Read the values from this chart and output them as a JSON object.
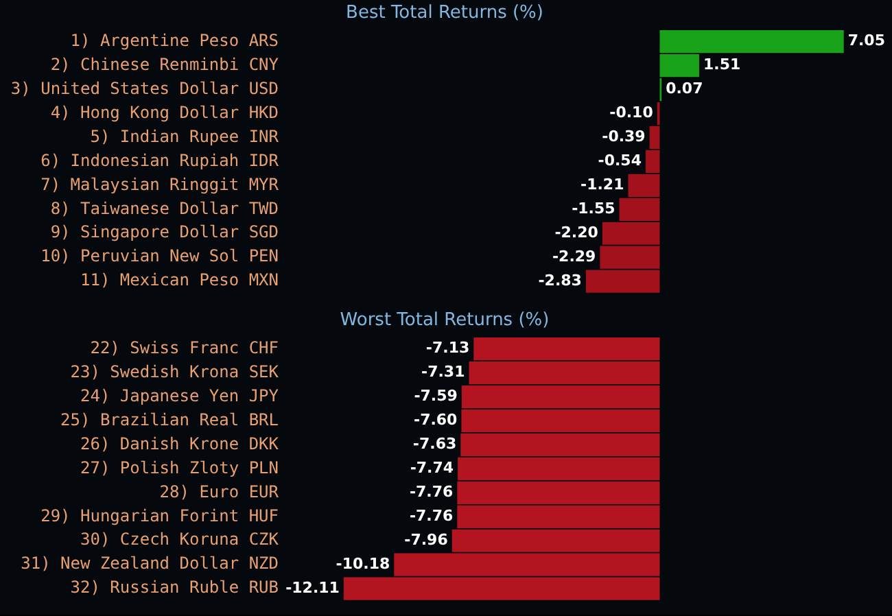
{
  "chart_data": [
    {
      "type": "bar",
      "orientation": "horizontal",
      "title": "Best Total Returns (%)",
      "categories": [
        "1) Argentine Peso ARS",
        "2) Chinese Renminbi CNY",
        "3) United States Dollar USD",
        "4) Hong Kong Dollar HKD",
        "5) Indian Rupee INR",
        "6) Indonesian Rupiah IDR",
        "7) Malaysian Ringgit MYR",
        "8) Taiwanese Dollar TWD",
        "9) Singapore Dollar SGD",
        "10) Peruvian New Sol PEN",
        "11) Mexican Peso MXN"
      ],
      "values": [
        7.05,
        1.51,
        0.07,
        -0.1,
        -0.39,
        -0.54,
        -1.21,
        -1.55,
        -2.2,
        -2.29,
        -2.83
      ],
      "value_labels": [
        "7.05",
        "1.51",
        "0.07",
        "-0.10",
        "-0.39",
        "-0.54",
        "-1.21",
        "-1.55",
        "-2.20",
        "-2.29",
        "-2.83"
      ],
      "colors": [
        "#19a319",
        "#19a319",
        "#19a319",
        "#a3121c",
        "#a3121c",
        "#a3121c",
        "#a3121c",
        "#a3121c",
        "#a3121c",
        "#a3121c",
        "#a3121c"
      ],
      "grid": false,
      "legend": false,
      "tick_labels": "y"
    },
    {
      "type": "bar",
      "orientation": "horizontal",
      "title": "Worst Total Returns (%)",
      "categories": [
        "22) Swiss Franc CHF",
        "23) Swedish Krona SEK",
        "24) Japanese Yen JPY",
        "25) Brazilian Real BRL",
        "26) Danish Krone DKK",
        "27) Polish Zloty PLN",
        "28) Euro EUR",
        "29) Hungarian Forint HUF",
        "30) Czech Koruna CZK",
        "31) New Zealand Dollar NZD",
        "32) Russian Ruble RUB"
      ],
      "values": [
        -7.13,
        -7.31,
        -7.59,
        -7.6,
        -7.63,
        -7.74,
        -7.76,
        -7.76,
        -7.96,
        -10.18,
        -12.11
      ],
      "value_labels": [
        "-7.13",
        "-7.31",
        "-7.59",
        "-7.60",
        "-7.63",
        "-7.74",
        "-7.76",
        "-7.76",
        "-7.96",
        "-10.18",
        "-12.11"
      ],
      "colors": [
        "#b3141f",
        "#b3141f",
        "#b3141f",
        "#b3141f",
        "#b3141f",
        "#b3141f",
        "#b3141f",
        "#b3141f",
        "#b3141f",
        "#b3141f",
        "#b3141f"
      ],
      "grid": false,
      "legend": false,
      "tick_labels": "y"
    }
  ]
}
